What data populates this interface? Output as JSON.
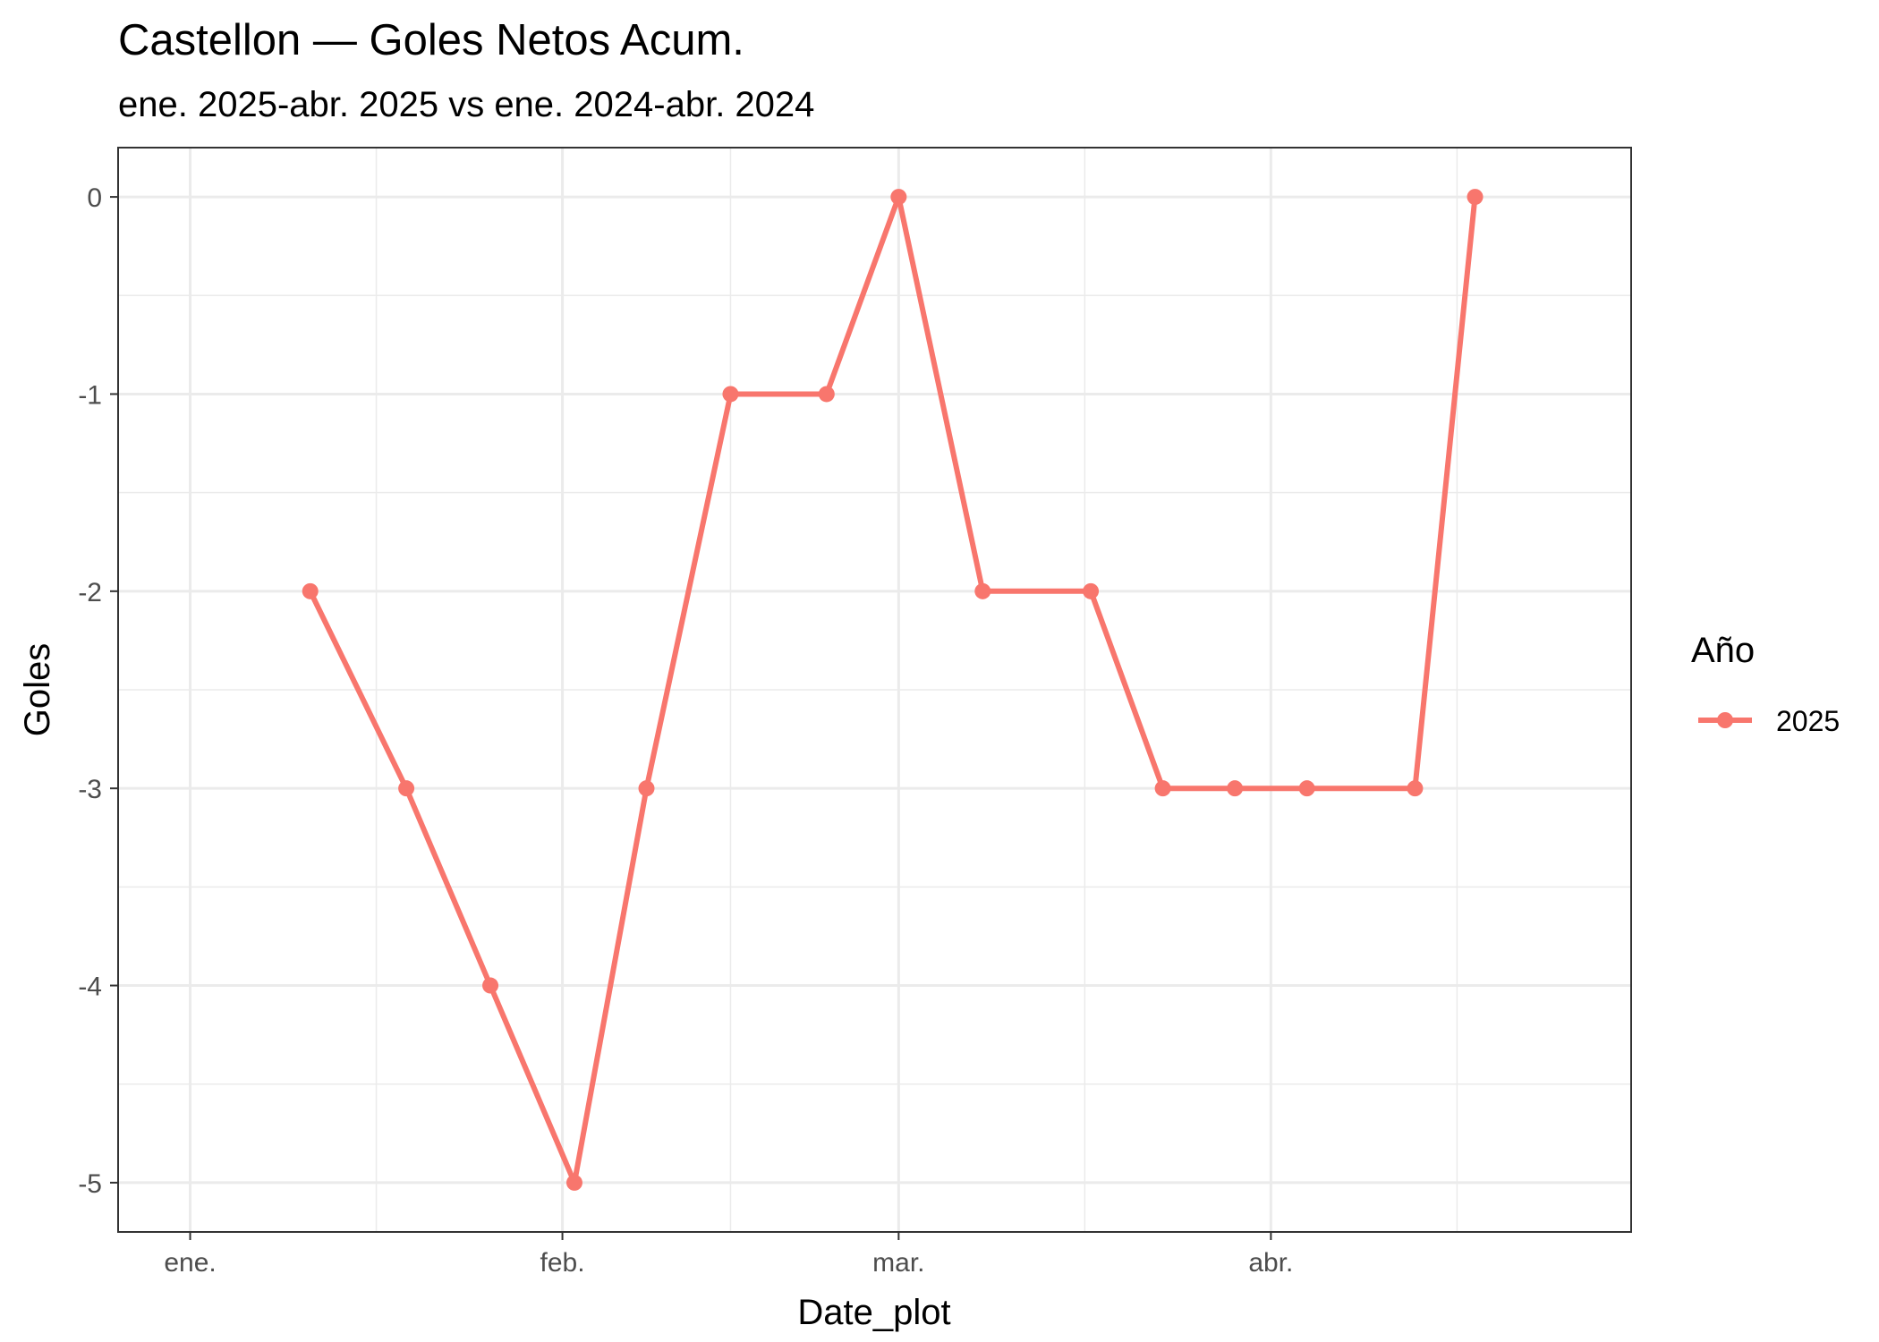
{
  "chart_data": {
    "type": "line",
    "title": "Castellon — Goles Netos Acum.",
    "subtitle": "ene. 2025-abr. 2025 vs ene. 2024-abr. 2024",
    "xlabel": "Date_plot",
    "ylabel": "Goles",
    "x_tick_labels": [
      {
        "date": "2025-01-01",
        "label": "ene."
      },
      {
        "date": "2025-02-01",
        "label": "feb."
      },
      {
        "date": "2025-03-01",
        "label": "mar."
      },
      {
        "date": "2025-04-01",
        "label": "abr."
      }
    ],
    "y_ticks": [
      0,
      -1,
      -2,
      -3,
      -4,
      -5
    ],
    "ylim": [
      -5.25,
      0.25
    ],
    "xlim": [
      "2024-12-26",
      "2025-05-01"
    ],
    "grid": true,
    "legend": {
      "title": "Año",
      "position": "right"
    },
    "series": [
      {
        "name": "2025",
        "color": "#F8766D",
        "x": [
          "2025-01-11",
          "2025-01-19",
          "2025-01-26",
          "2025-02-02",
          "2025-02-08",
          "2025-02-15",
          "2025-02-23",
          "2025-03-01",
          "2025-03-08",
          "2025-03-17",
          "2025-03-23",
          "2025-03-29",
          "2025-04-04",
          "2025-04-13",
          "2025-04-18"
        ],
        "y": [
          -2,
          -3,
          -4,
          -5,
          -3,
          -1,
          -1,
          0,
          -2,
          -2,
          -3,
          -3,
          -3,
          -3,
          0
        ]
      }
    ]
  }
}
